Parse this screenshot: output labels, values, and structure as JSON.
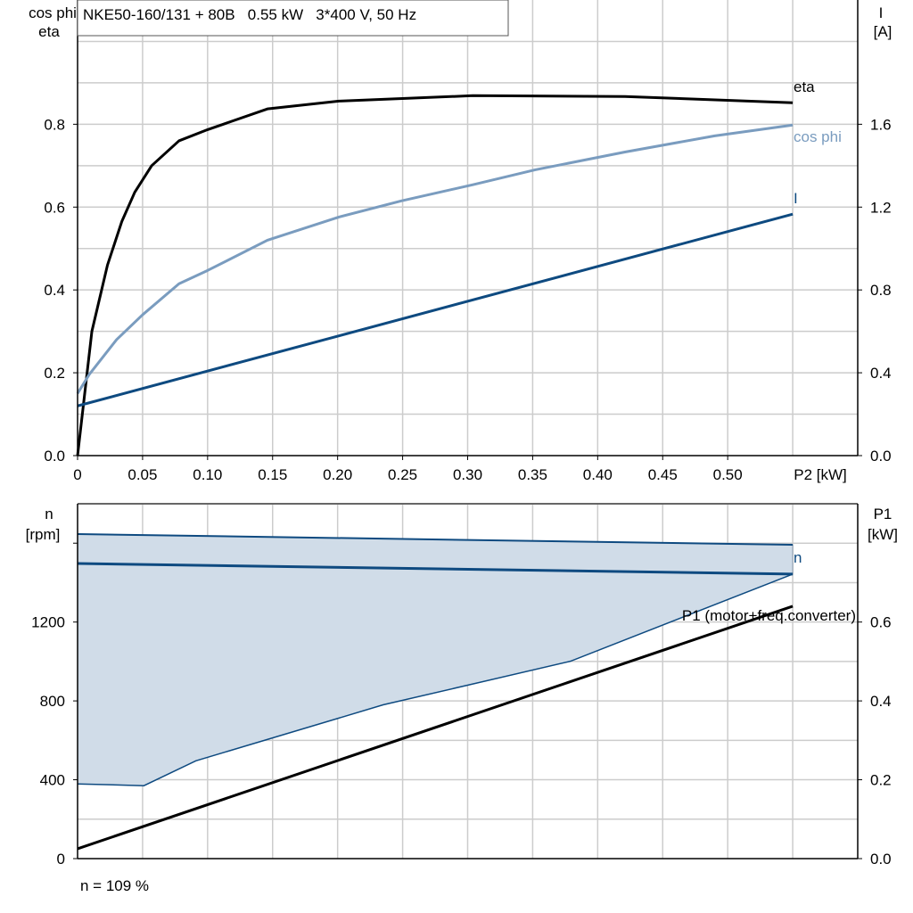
{
  "chart_data": [
    {
      "type": "line",
      "title": "NKE50-160/131 + 80B   0.55 kW   3*400 V, 50 Hz",
      "xlabel": "P2 [kW]",
      "ylabel": [
        "cos phi",
        "eta"
      ],
      "y2label": [
        "I",
        "[A]"
      ],
      "xlim": [
        0,
        0.6
      ],
      "ylim": [
        0,
        1.1
      ],
      "y2lim": [
        0,
        2.2
      ],
      "grid": true,
      "x_ticks": [
        "0",
        "0.05",
        "0.10",
        "0.15",
        "0.20",
        "0.25",
        "0.30",
        "0.35",
        "0.40",
        "0.45",
        "0.50"
      ],
      "y_ticks": [
        "0.0",
        "0.2",
        "0.4",
        "0.6",
        "0.8"
      ],
      "y2_ticks": [
        "0.0",
        "0.4",
        "0.8",
        "1.2",
        "1.6"
      ],
      "series": [
        {
          "name": "eta",
          "axis": "left",
          "color": "#000000",
          "x": [
            0,
            0.011,
            0.023,
            0.034,
            0.044,
            0.057,
            0.078,
            0.1,
            0.146,
            0.201,
            0.304,
            0.421,
            0.55
          ],
          "y": [
            0,
            0.3,
            0.46,
            0.565,
            0.636,
            0.7,
            0.76,
            0.787,
            0.837,
            0.856,
            0.869,
            0.867,
            0.852
          ]
        },
        {
          "name": "cos phi",
          "axis": "left",
          "color": "#7a9cbf",
          "x": [
            0,
            0.009,
            0.03,
            0.05,
            0.078,
            0.1,
            0.146,
            0.201,
            0.249,
            0.304,
            0.352,
            0.421,
            0.49,
            0.55
          ],
          "y": [
            0.15,
            0.196,
            0.28,
            0.34,
            0.415,
            0.447,
            0.52,
            0.576,
            0.615,
            0.654,
            0.69,
            0.733,
            0.772,
            0.798
          ]
        },
        {
          "name": "I",
          "axis": "right",
          "color": "#0e4a80",
          "x": [
            0,
            0.55
          ],
          "y": [
            0.24,
            1.166
          ]
        }
      ]
    },
    {
      "type": "area",
      "xlim": [
        0,
        0.6
      ],
      "ylabel": [
        "n",
        "[rpm]"
      ],
      "y2label": [
        "P1",
        "[kW]"
      ],
      "ylim": [
        0,
        1800
      ],
      "y2lim": [
        0,
        0.9
      ],
      "grid": true,
      "y_ticks": [
        "0",
        "400",
        "800",
        "1200"
      ],
      "y2_ticks": [
        "0.0",
        "0.2",
        "0.4",
        "0.6"
      ],
      "footnote": "n = 109 %",
      "series": [
        {
          "name": "n",
          "axis": "left",
          "color": "#0e4a80",
          "x": [
            0,
            0.55
          ],
          "y": [
            1497,
            1443
          ]
        },
        {
          "role": "n max",
          "axis": "left",
          "color": "#0e4a80",
          "x": [
            0,
            0.55
          ],
          "y": [
            1646,
            1592
          ]
        },
        {
          "role": "n min",
          "axis": "left",
          "color": "#0e4a80",
          "x": [
            0,
            0.051,
            0.091,
            0.235,
            0.379,
            0.55
          ],
          "y": [
            379,
            370,
            496,
            780,
            1001,
            1443
          ]
        },
        {
          "name": "P1 (motor+freq.converter)",
          "axis": "right",
          "color": "#000000",
          "x": [
            0,
            0.55
          ],
          "y": [
            0.025,
            0.64
          ]
        }
      ],
      "fill_color": "#d0dce8"
    }
  ]
}
